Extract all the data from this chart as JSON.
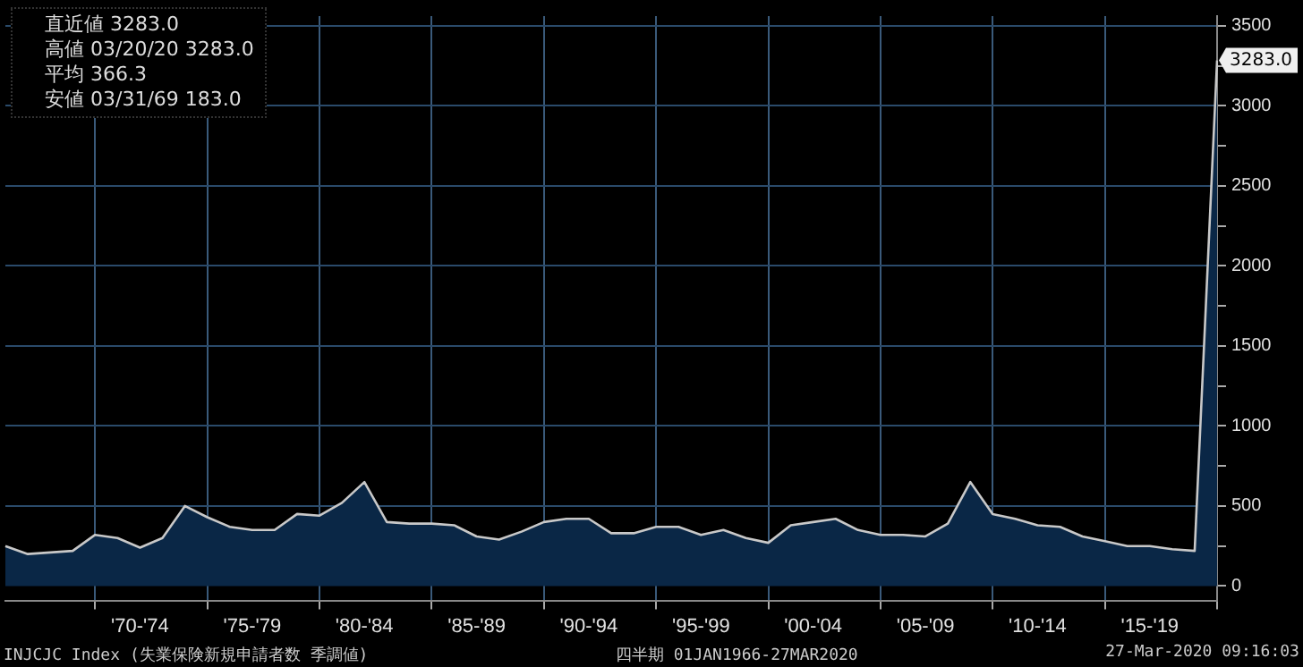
{
  "chart_data": {
    "type": "area",
    "categories": [
      null,
      null,
      null,
      null,
      null,
      null,
      "'70-'74",
      null,
      null,
      null,
      null,
      "'75-'79",
      null,
      null,
      null,
      null,
      "'80-'84",
      null,
      null,
      null,
      null,
      "'85-'89",
      null,
      null,
      null,
      null,
      "'90-'94",
      null,
      null,
      null,
      null,
      "'95-'99",
      null,
      null,
      null,
      null,
      "'00-'04",
      null,
      null,
      null,
      null,
      "'05-'09",
      null,
      null,
      null,
      null,
      "'10-'14",
      null,
      null,
      null,
      null,
      "'15-'19",
      null,
      null,
      null
    ],
    "series": [
      {
        "color": "#0a2746",
        "values": [
          250,
          200,
          210,
          220,
          320,
          300,
          240,
          300,
          500,
          430,
          370,
          350,
          350,
          450,
          440,
          520,
          650,
          400,
          390,
          390,
          380,
          310,
          290,
          340,
          400,
          420,
          420,
          330,
          330,
          370,
          370,
          320,
          350,
          300,
          270,
          380,
          400,
          420,
          350,
          320,
          320,
          310,
          390,
          650,
          450,
          420,
          380,
          370,
          310,
          280,
          250,
          250,
          230,
          220,
          3283
        ]
      }
    ],
    "ylim": [
      -90,
      3560
    ],
    "yticks": [
      0,
      {
        "value": 250,
        "label": null
      },
      500,
      {
        "value": 750,
        "label": null
      },
      1000,
      {
        "value": 1250,
        "label": null
      },
      1500,
      {
        "value": 1750,
        "label": null
      },
      2000,
      {
        "value": 2250,
        "label": null
      },
      2500,
      {
        "value": 2750,
        "label": null
      },
      3000,
      {
        "value": 3250,
        "label": null
      },
      3500
    ],
    "grid": true,
    "annotations": [
      "直近値 3283.0",
      "高値 03/20/20 3283.0",
      "平均 366.3",
      "安値 03/31/69 183.0",
      {
        "text": "3283.0",
        "y": 3283
      },
      "INJCJC Index (失業保険新規申請者数 季調値)",
      "四半期 01JAN1966-27MAR2020",
      "27-Mar-2020 09:16:03"
    ]
  }
}
